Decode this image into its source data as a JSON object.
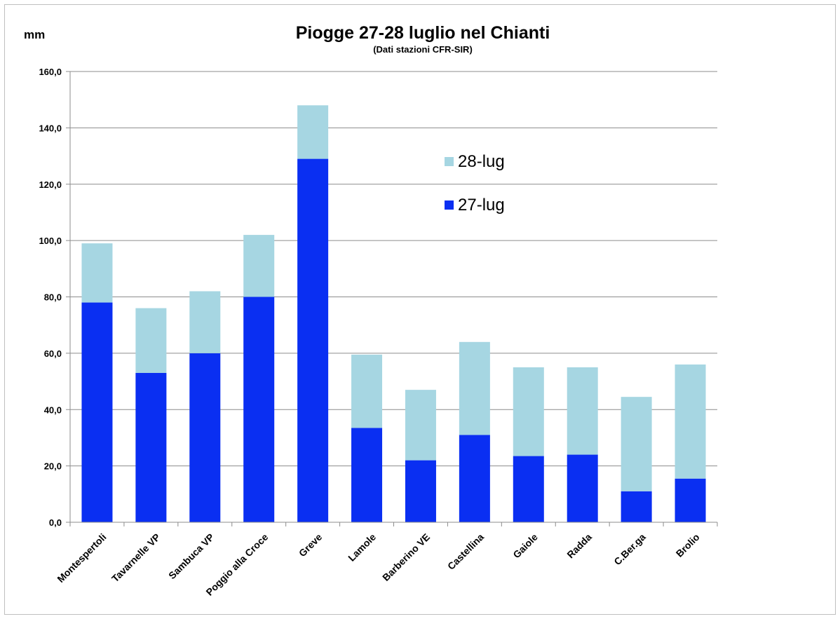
{
  "chart_data": {
    "type": "bar",
    "stacked": true,
    "title": "Piogge 27-28 luglio nel Chianti",
    "subtitle": "(Dati stazioni CFR-SIR)",
    "ylabel": "mm",
    "ylim": [
      0,
      160
    ],
    "ytick_step": 20,
    "ytick_labels": [
      "0,0",
      "20,0",
      "40,0",
      "60,0",
      "80,0",
      "100,0",
      "120,0",
      "140,0",
      "160,0"
    ],
    "grid": true,
    "legend_position": "top-right",
    "categories": [
      "Montespertoli",
      "Tavarnelle VP",
      "Sambuca  VP",
      "Poggio alla Croce",
      "Greve",
      "Lamole",
      "Barberino VE",
      "Castellina",
      "Gaiole",
      "Radda",
      "C.Ber.ga",
      "Brolio"
    ],
    "series": [
      {
        "name": "27-lug",
        "color": "#0a2ff2",
        "values": [
          78,
          53,
          60,
          80,
          129,
          33.5,
          22,
          31,
          23.5,
          24,
          11,
          15.5
        ]
      },
      {
        "name": "28-lug",
        "color": "#a6d6e2",
        "values": [
          21,
          23,
          22,
          22,
          19,
          26,
          25,
          33,
          31.5,
          31,
          33.5,
          40.5
        ]
      }
    ],
    "legend_order": [
      "28-lug",
      "27-lug"
    ]
  }
}
